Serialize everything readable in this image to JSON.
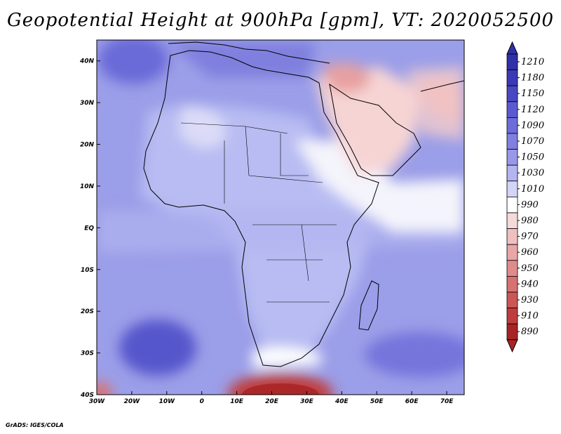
{
  "title": "Geopotential Height at 900hPa [gpm], VT: 2020052500",
  "credit": "GrADS: IGES/COLA",
  "map": {
    "lon_range": [
      -30,
      75
    ],
    "lat_range": [
      -40,
      45
    ],
    "lon_ticks": [
      {
        "value": -30,
        "label": "30W"
      },
      {
        "value": -20,
        "label": "20W"
      },
      {
        "value": -10,
        "label": "10W"
      },
      {
        "value": 0,
        "label": "0"
      },
      {
        "value": 10,
        "label": "10E"
      },
      {
        "value": 20,
        "label": "20E"
      },
      {
        "value": 30,
        "label": "30E"
      },
      {
        "value": 40,
        "label": "40E"
      },
      {
        "value": 50,
        "label": "50E"
      },
      {
        "value": 60,
        "label": "60E"
      },
      {
        "value": 70,
        "label": "70E"
      }
    ],
    "lat_ticks": [
      {
        "value": 40,
        "label": "40N"
      },
      {
        "value": 30,
        "label": "30N"
      },
      {
        "value": 20,
        "label": "20N"
      },
      {
        "value": 10,
        "label": "10N"
      },
      {
        "value": 0,
        "label": "EQ"
      },
      {
        "value": -10,
        "label": "10S"
      },
      {
        "value": -20,
        "label": "20S"
      },
      {
        "value": -30,
        "label": "30S"
      },
      {
        "value": -40,
        "label": "40S"
      }
    ],
    "background_color": "#9b9ee8"
  },
  "colorbar": {
    "levels": [
      "1210",
      "1180",
      "1150",
      "1120",
      "1090",
      "1070",
      "1050",
      "1030",
      "1010",
      "990",
      "980",
      "970",
      "960",
      "950",
      "940",
      "930",
      "910",
      "890"
    ],
    "colors": [
      "#3030a8",
      "#3a3ab8",
      "#4848c4",
      "#5a5ad0",
      "#6c6cda",
      "#8080e0",
      "#9898e8",
      "#b4b4f0",
      "#d4d4f8",
      "#ffffff",
      "#f6dada",
      "#f0c0c0",
      "#e8a6a6",
      "#e08c8c",
      "#d87272",
      "#cc5656",
      "#c03c3c",
      "#a82424"
    ]
  }
}
